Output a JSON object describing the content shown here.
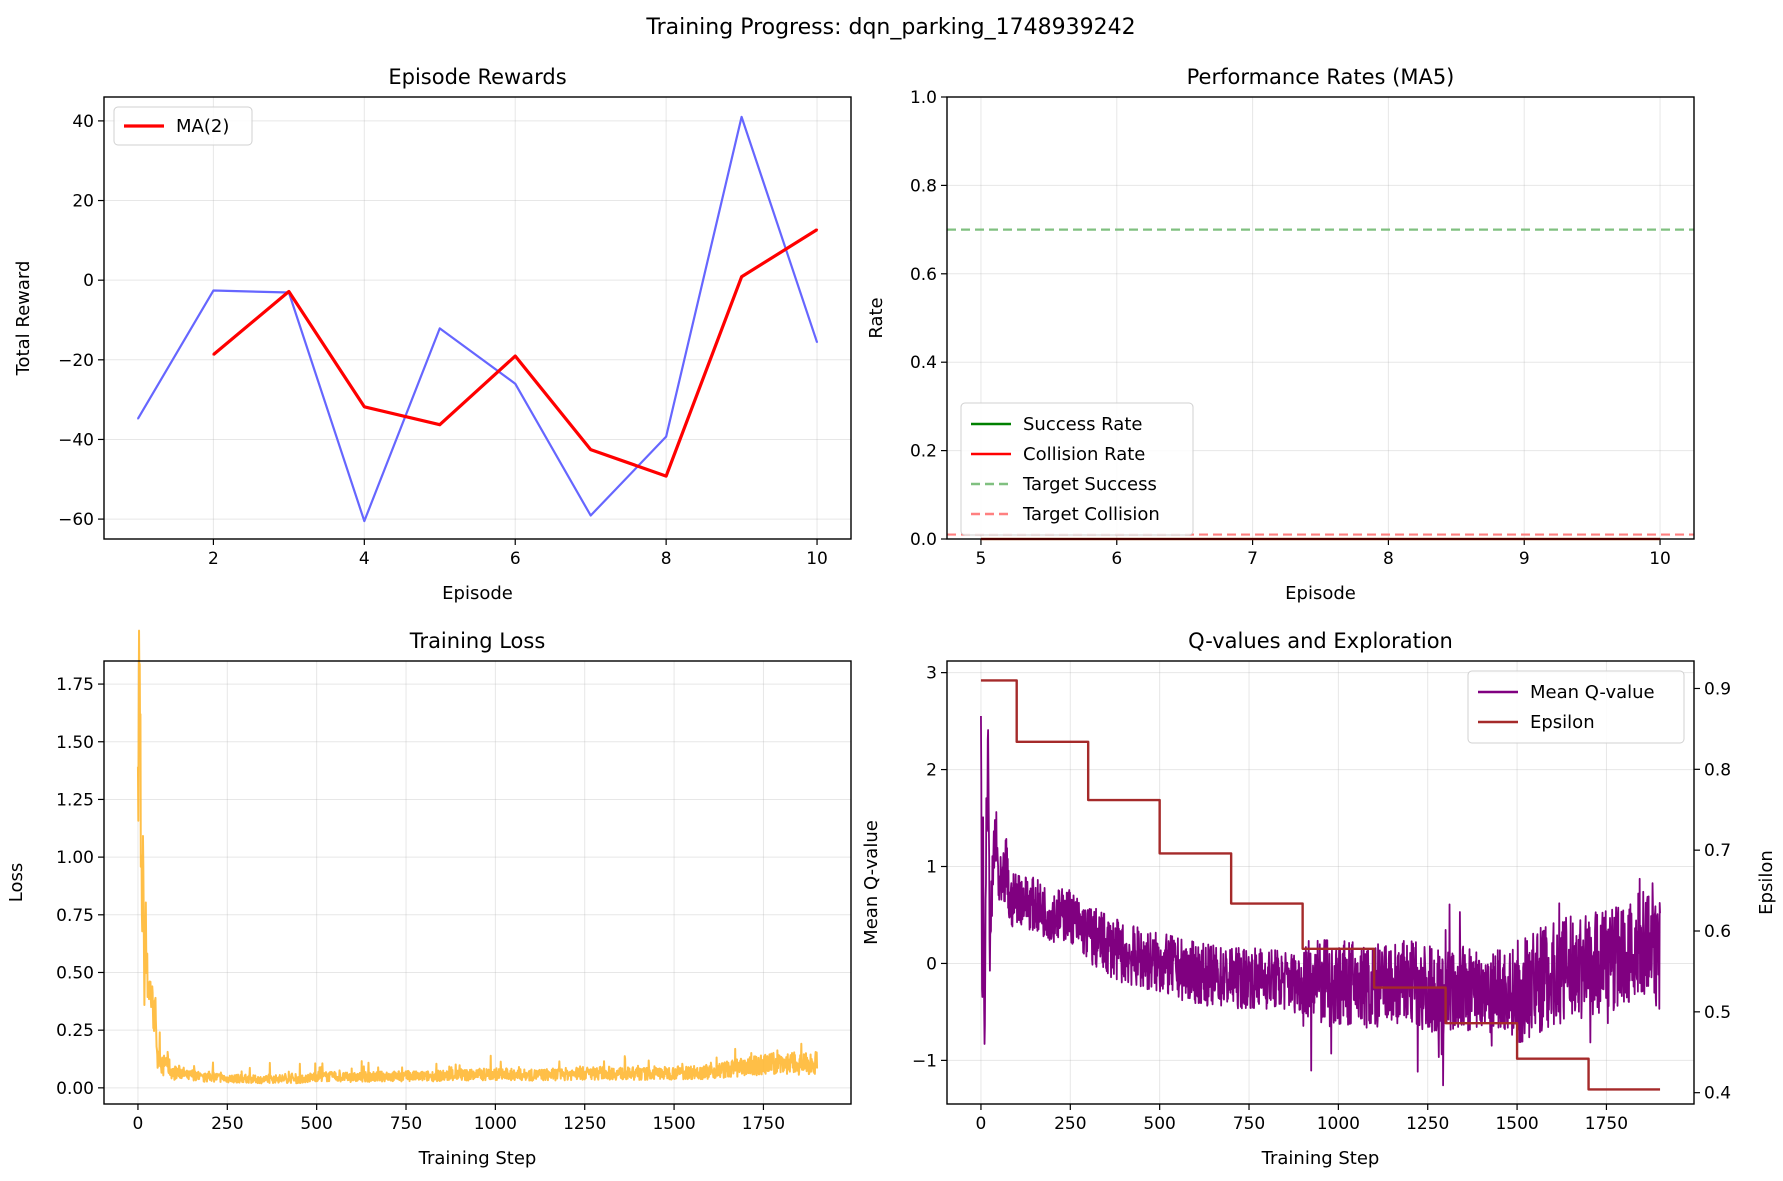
{
  "figure": {
    "title": "Training Progress: dqn_parking_1748939242"
  },
  "chart_data": [
    {
      "id": "rewards",
      "type": "line",
      "title": "Episode Rewards",
      "xlabel": "Episode",
      "ylabel": "Total Reward",
      "xlim": [
        0.55,
        10.45
      ],
      "ylim": [
        -65,
        46
      ],
      "xticks": [
        2,
        4,
        6,
        8,
        10
      ],
      "yticks": [
        -60,
        -40,
        -20,
        0,
        20,
        40
      ],
      "legend": {
        "placement": "top-left",
        "entries": [
          "MA(2)"
        ]
      },
      "grid": true,
      "series": [
        {
          "name": "",
          "color": "#6666ff",
          "x": [
            1,
            2,
            3,
            4,
            5,
            6,
            7,
            8,
            9,
            10
          ],
          "y": [
            -34.8,
            -2.6,
            -3.1,
            -60.5,
            -12.1,
            -26.0,
            -59.1,
            -39.3,
            41.0,
            -15.6
          ]
        },
        {
          "name": "MA(2)",
          "color": "#ff0000",
          "x": [
            2,
            3,
            4,
            5,
            6,
            7,
            8,
            9,
            10
          ],
          "y": [
            -18.7,
            -2.85,
            -31.8,
            -36.3,
            -19.05,
            -42.55,
            -49.2,
            0.85,
            12.7
          ]
        }
      ]
    },
    {
      "id": "rates",
      "type": "line",
      "title": "Performance Rates (MA5)",
      "xlabel": "Episode",
      "ylabel": "Rate",
      "xlim": [
        4.75,
        10.25
      ],
      "ylim": [
        0.0,
        1.0
      ],
      "xticks": [
        5,
        6,
        7,
        8,
        9,
        10
      ],
      "yticks": [
        0.0,
        0.2,
        0.4,
        0.6,
        0.8,
        1.0
      ],
      "grid": true,
      "legend": {
        "placement": "lower-left",
        "entries": [
          {
            "label": "Success Rate",
            "color": "#008000",
            "style": "solid"
          },
          {
            "label": "Collision Rate",
            "color": "#ff0000",
            "style": "solid"
          },
          {
            "label": "Target Success",
            "color": "#80c080",
            "style": "dashed"
          },
          {
            "label": "Target Collision",
            "color": "#ff8080",
            "style": "dashed"
          }
        ]
      },
      "series": [
        {
          "name": "Success Rate",
          "color": "#008000",
          "x": [
            5,
            6,
            7,
            8,
            9,
            10
          ],
          "y": [
            0,
            0,
            0,
            0,
            0,
            0
          ]
        },
        {
          "name": "Collision Rate",
          "color": "#ff0000",
          "x": [
            5,
            6,
            7,
            8,
            9,
            10
          ],
          "y": [
            0,
            0,
            0,
            0,
            0,
            0
          ]
        }
      ],
      "hlines": [
        {
          "name": "Target Success",
          "y": 0.7,
          "color": "#80c080"
        },
        {
          "name": "Target Collision",
          "y": 0.01,
          "color": "#ff8080"
        }
      ]
    },
    {
      "id": "loss",
      "type": "line",
      "title": "Training Loss",
      "xlabel": "Training Step",
      "ylabel": "Loss",
      "xlim": [
        -95,
        1995
      ],
      "ylim": [
        -0.07,
        1.85
      ],
      "xticks": [
        0,
        250,
        500,
        750,
        1000,
        1250,
        1500,
        1750
      ],
      "yticks": [
        0.0,
        0.25,
        0.5,
        0.75,
        1.0,
        1.25,
        1.5,
        1.75
      ],
      "grid": true,
      "series": [
        {
          "name": "",
          "color": "#ffb833",
          "x": [
            0,
            3,
            6,
            9,
            12,
            15,
            18,
            22,
            26,
            30,
            35,
            40,
            45,
            50,
            55,
            60,
            70,
            80,
            90,
            100,
            120,
            140,
            160,
            180,
            200,
            250,
            300,
            350,
            400,
            450,
            500,
            600,
            700,
            800,
            900,
            1000,
            1100,
            1200,
            1300,
            1400,
            1500,
            1600,
            1700,
            1750,
            1800,
            1850,
            1900
          ],
          "y": [
            1.15,
            1.76,
            1.7,
            1.0,
            0.62,
            1.05,
            0.4,
            0.8,
            0.48,
            0.45,
            0.42,
            0.37,
            0.3,
            0.33,
            0.1,
            0.14,
            0.09,
            0.12,
            0.08,
            0.06,
            0.07,
            0.05,
            0.06,
            0.04,
            0.05,
            0.04,
            0.04,
            0.035,
            0.04,
            0.035,
            0.05,
            0.045,
            0.05,
            0.05,
            0.055,
            0.06,
            0.055,
            0.06,
            0.065,
            0.06,
            0.065,
            0.07,
            0.09,
            0.1,
            0.11,
            0.1,
            0.11
          ]
        }
      ]
    },
    {
      "id": "qvalues",
      "type": "line",
      "title": "Q-values and Exploration",
      "xlabel": "Training Step",
      "ylabel": "Mean Q-value",
      "y2label": "Epsilon",
      "xlim": [
        -95,
        1995
      ],
      "ylim": [
        -1.45,
        3.12
      ],
      "y2lim": [
        0.386,
        0.934
      ],
      "xticks": [
        0,
        250,
        500,
        750,
        1000,
        1250,
        1500,
        1750
      ],
      "yticks": [
        -1,
        0,
        1,
        2,
        3
      ],
      "y2ticks": [
        0.4,
        0.5,
        0.6,
        0.7,
        0.8,
        0.9
      ],
      "grid": true,
      "legend": {
        "placement": "top-right",
        "entries": [
          {
            "label": "Mean Q-value",
            "color": "#800080"
          },
          {
            "label": "Epsilon",
            "color": "#a52a2a"
          }
        ]
      },
      "series": [
        {
          "name": "Mean Q-value",
          "color": "#800080",
          "x": [
            0,
            3,
            6,
            10,
            15,
            20,
            25,
            30,
            40,
            50,
            60,
            70,
            80,
            100,
            150,
            200,
            250,
            300,
            400,
            500,
            600,
            700,
            800,
            900,
            1000,
            1100,
            1200,
            1300,
            1400,
            1500,
            1600,
            1700,
            1800,
            1850,
            1900
          ],
          "y": [
            2.9,
            -0.6,
            1.2,
            -0.9,
            1.4,
            2.1,
            0.2,
            0.6,
            1.4,
            0.8,
            0.7,
            1.0,
            0.6,
            0.7,
            0.6,
            0.5,
            0.5,
            0.3,
            0.1,
            0.0,
            -0.1,
            -0.15,
            -0.15,
            -0.2,
            -0.2,
            -0.25,
            -0.2,
            -0.3,
            -0.25,
            -0.3,
            -0.1,
            0.0,
            0.1,
            0.2,
            0.05
          ]
        },
        {
          "name": "Epsilon",
          "color": "#a52a2a",
          "axis": "right",
          "step": "post",
          "x": [
            0,
            100,
            300,
            500,
            700,
            900,
            1100,
            1300,
            1500,
            1700,
            1900
          ],
          "y": [
            0.91,
            0.834,
            0.762,
            0.696,
            0.634,
            0.578,
            0.53,
            0.486,
            0.442,
            0.404,
            0.404
          ]
        }
      ]
    }
  ]
}
